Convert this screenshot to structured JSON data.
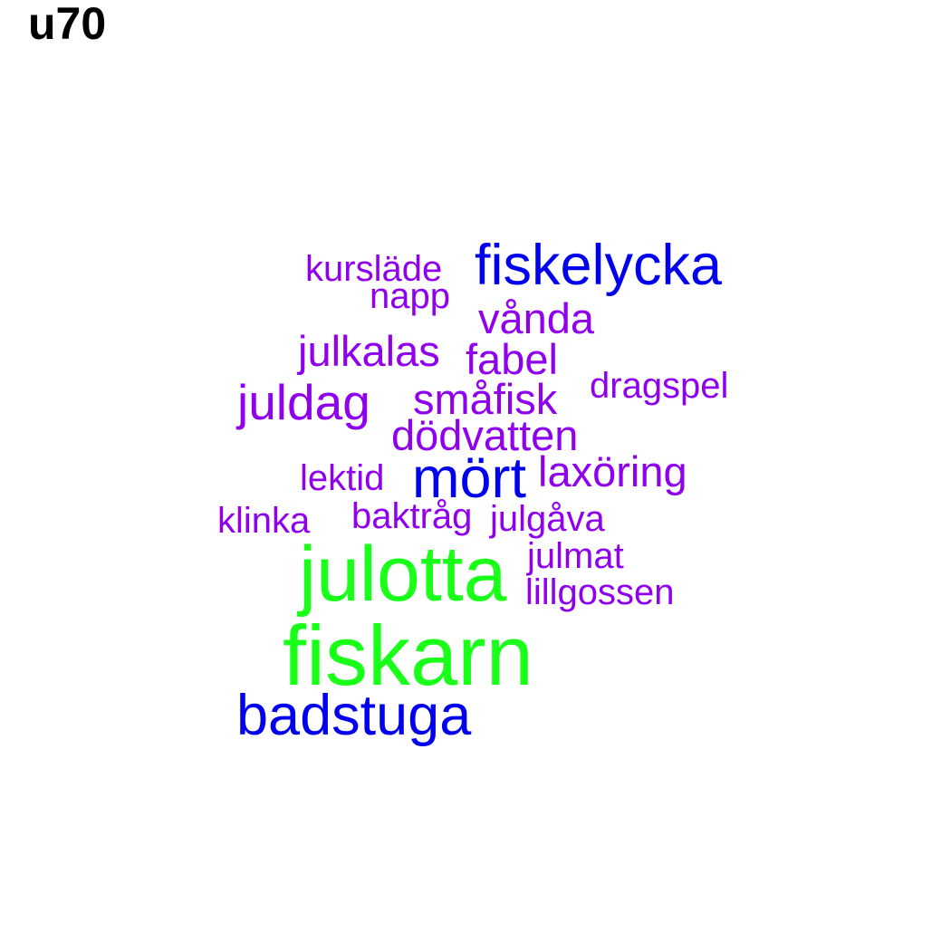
{
  "title": "u70",
  "colors": {
    "green": "#1aff1a",
    "blue": "#0000ee",
    "purple": "#8f00ee"
  },
  "words": [
    {
      "text": "kursläde",
      "color": "purple"
    },
    {
      "text": "fiskelycka",
      "color": "blue"
    },
    {
      "text": "napp",
      "color": "purple"
    },
    {
      "text": "vånda",
      "color": "purple"
    },
    {
      "text": "julkalas",
      "color": "purple"
    },
    {
      "text": "fabel",
      "color": "purple"
    },
    {
      "text": "dragspel",
      "color": "purple"
    },
    {
      "text": "juldag",
      "color": "purple"
    },
    {
      "text": "småfisk",
      "color": "purple"
    },
    {
      "text": "dödvatten",
      "color": "purple"
    },
    {
      "text": "lektid",
      "color": "purple"
    },
    {
      "text": "mört",
      "color": "blue"
    },
    {
      "text": "laxöring",
      "color": "purple"
    },
    {
      "text": "klinka",
      "color": "purple"
    },
    {
      "text": "baktråg",
      "color": "purple"
    },
    {
      "text": "julgåva",
      "color": "purple"
    },
    {
      "text": "julotta",
      "color": "green"
    },
    {
      "text": "julmat",
      "color": "purple"
    },
    {
      "text": "lillgossen",
      "color": "purple"
    },
    {
      "text": "fiskarn",
      "color": "green"
    },
    {
      "text": "badstuga",
      "color": "blue"
    }
  ]
}
